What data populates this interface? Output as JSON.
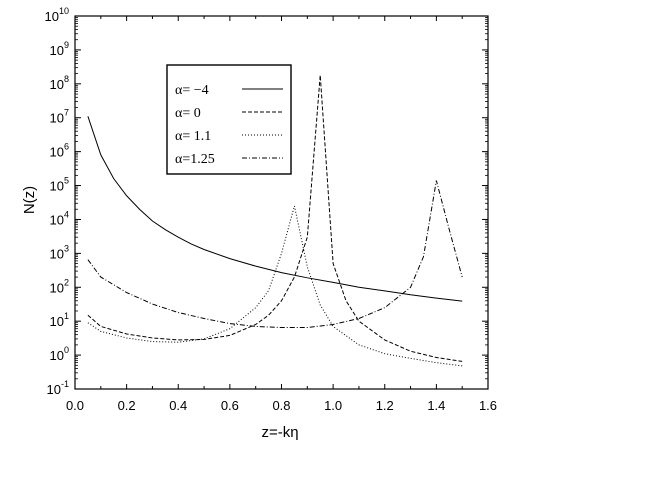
{
  "chart_data": {
    "type": "line",
    "xlabel": "z=-kη",
    "ylabel": "N(z)",
    "xlim": [
      0.0,
      1.6
    ],
    "ylim_log10": [
      -1,
      10
    ],
    "y_scale": "log",
    "grid": false,
    "legend_placement": "top-center",
    "x_ticks": [
      "0.0",
      "0.2",
      "0.4",
      "0.6",
      "0.8",
      "1.0",
      "1.2",
      "1.4",
      "1.6"
    ],
    "y_tick_exponents": [
      "-1",
      "0",
      "1",
      "2",
      "3",
      "4",
      "5",
      "6",
      "7",
      "8",
      "9",
      "10"
    ],
    "y_tick_base": "10",
    "series": [
      {
        "name": "α= −4",
        "dash": "solid",
        "points": [
          [
            0.05,
            11000000.0
          ],
          [
            0.1,
            800000.0
          ],
          [
            0.15,
            160000.0
          ],
          [
            0.2,
            50000.0
          ],
          [
            0.25,
            20000.0
          ],
          [
            0.3,
            9000
          ],
          [
            0.35,
            5000
          ],
          [
            0.4,
            3000
          ],
          [
            0.45,
            1900
          ],
          [
            0.5,
            1300
          ],
          [
            0.6,
            700
          ],
          [
            0.7,
            420
          ],
          [
            0.8,
            270
          ],
          [
            0.9,
            190
          ],
          [
            1.0,
            140
          ],
          [
            1.1,
            100
          ],
          [
            1.2,
            78
          ],
          [
            1.3,
            60
          ],
          [
            1.4,
            48
          ],
          [
            1.5,
            39
          ]
        ]
      },
      {
        "name": "α=   0",
        "dash": "dashed",
        "points": [
          [
            0.05,
            15
          ],
          [
            0.1,
            7
          ],
          [
            0.2,
            4.2
          ],
          [
            0.3,
            3.2
          ],
          [
            0.4,
            2.8
          ],
          [
            0.5,
            2.9
          ],
          [
            0.6,
            3.8
          ],
          [
            0.7,
            8
          ],
          [
            0.75,
            15
          ],
          [
            0.8,
            40
          ],
          [
            0.85,
            200
          ],
          [
            0.9,
            3000
          ],
          [
            0.95,
            180000000.0
          ],
          [
            1.0,
            500
          ],
          [
            1.05,
            40
          ],
          [
            1.1,
            10
          ],
          [
            1.2,
            2.8
          ],
          [
            1.3,
            1.3
          ],
          [
            1.4,
            0.85
          ],
          [
            1.5,
            0.65
          ]
        ]
      },
      {
        "name": "α= 1.1",
        "dash": "dotted",
        "points": [
          [
            0.05,
            9
          ],
          [
            0.1,
            5
          ],
          [
            0.2,
            3.2
          ],
          [
            0.3,
            2.5
          ],
          [
            0.4,
            2.4
          ],
          [
            0.5,
            3
          ],
          [
            0.6,
            6
          ],
          [
            0.7,
            25
          ],
          [
            0.75,
            80
          ],
          [
            0.8,
            1000
          ],
          [
            0.85,
            25000.0
          ],
          [
            0.9,
            400
          ],
          [
            0.95,
            30
          ],
          [
            1.0,
            7
          ],
          [
            1.1,
            2
          ],
          [
            1.2,
            1.1
          ],
          [
            1.3,
            0.8
          ],
          [
            1.4,
            0.6
          ],
          [
            1.5,
            0.48
          ]
        ]
      },
      {
        "name": "α=1.25",
        "dash": "dashdot",
        "points": [
          [
            0.05,
            650
          ],
          [
            0.1,
            200
          ],
          [
            0.2,
            70
          ],
          [
            0.3,
            32
          ],
          [
            0.4,
            18
          ],
          [
            0.5,
            12
          ],
          [
            0.6,
            8.5
          ],
          [
            0.7,
            7
          ],
          [
            0.8,
            6.5
          ],
          [
            0.9,
            6.5
          ],
          [
            1.0,
            8
          ],
          [
            1.1,
            12
          ],
          [
            1.2,
            25
          ],
          [
            1.3,
            100
          ],
          [
            1.35,
            800
          ],
          [
            1.4,
            140000.0
          ],
          [
            1.45,
            5000
          ],
          [
            1.5,
            200
          ]
        ]
      }
    ]
  }
}
